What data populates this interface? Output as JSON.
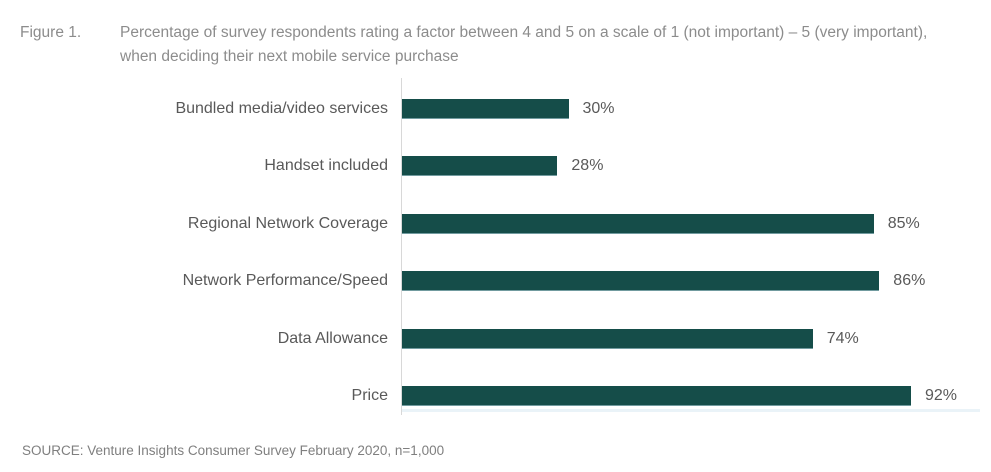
{
  "figure": {
    "label": "Figure 1.",
    "title": "Percentage of survey respondents rating a factor between 4 and 5 on a scale of 1 (not important) – 5 (very important), when deciding their next mobile service purchase"
  },
  "chart_data": {
    "type": "bar",
    "orientation": "horizontal",
    "title": "Percentage of survey respondents rating a factor between 4 and 5 on a scale of 1 (not important) – 5 (very important), when deciding their next mobile service purchase",
    "categories": [
      "Bundled media/video services",
      "Handset included",
      "Regional Network Coverage",
      "Network Performance/Speed",
      "Data Allowance",
      "Price"
    ],
    "values": [
      30,
      28,
      85,
      86,
      74,
      92
    ],
    "value_labels": [
      "30%",
      "28%",
      "85%",
      "86%",
      "74%",
      "92%"
    ],
    "xlim": [
      0,
      100
    ],
    "grid": false,
    "legend": "none",
    "bar_color": "#154D49",
    "axis_line_color": "#D8D8D8",
    "plot_bottom_edge_color": "#EAF3F8",
    "label_color": "#595959",
    "title_color": "#8C8C8C"
  },
  "source": {
    "text": "SOURCE: Venture Insights Consumer Survey February 2020, n=1,000"
  }
}
